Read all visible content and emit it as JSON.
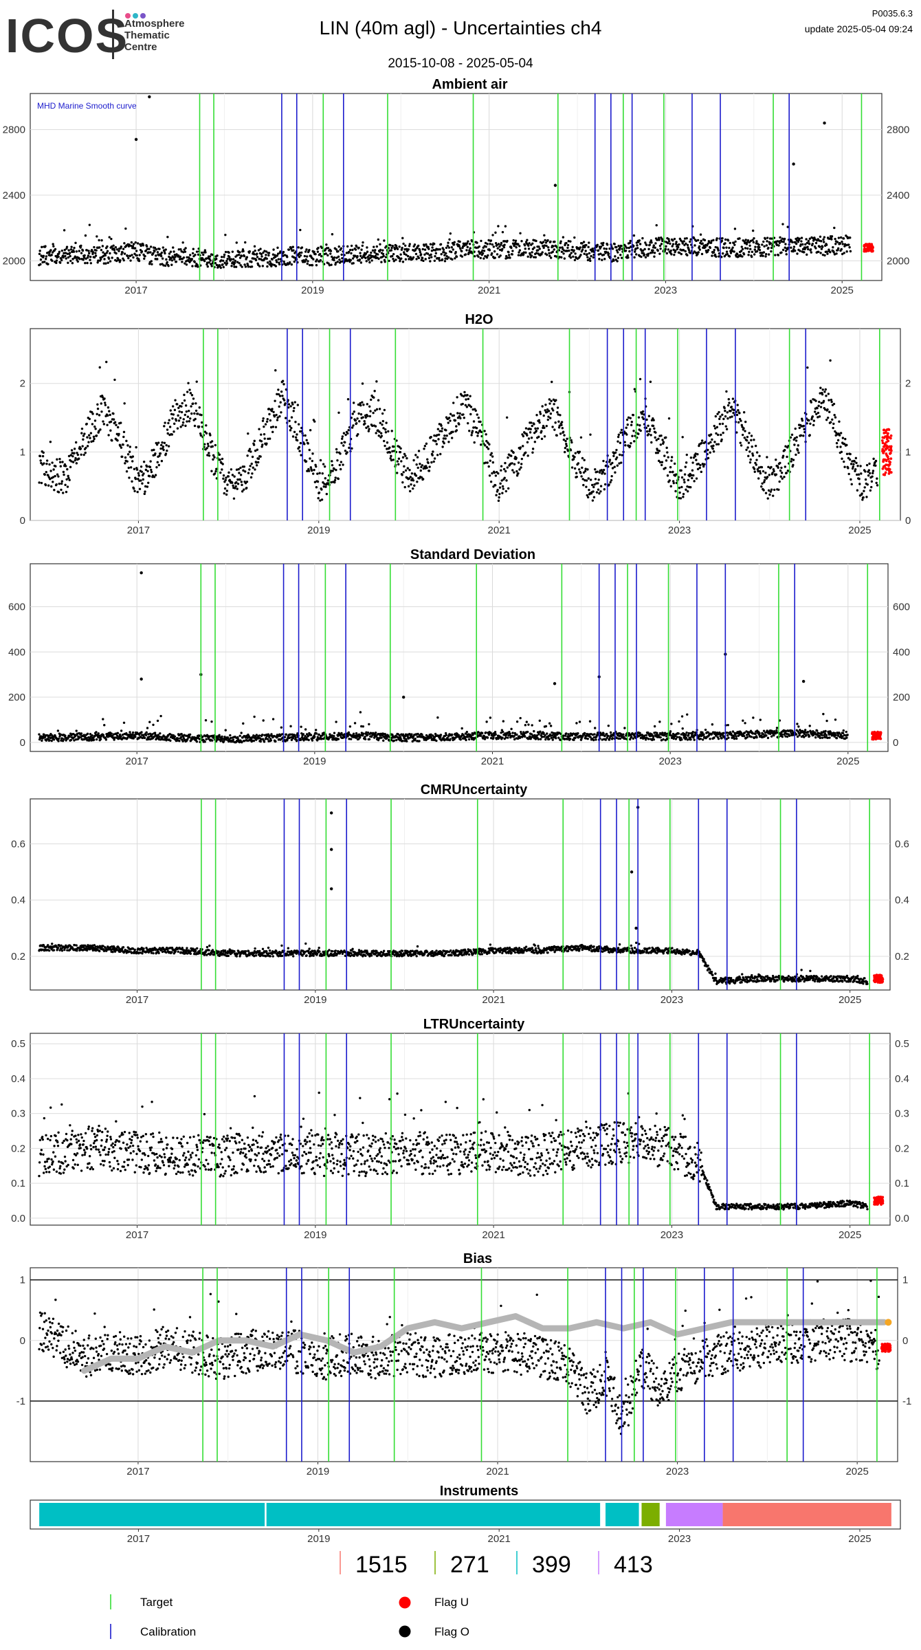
{
  "header": {
    "logo_text": "ICOS",
    "logo_tagline": [
      "Atmosphere",
      "Thematic",
      "Centre"
    ],
    "title": "LIN  (40m agl) - Uncertainties ch4",
    "date_range": "2015-10-08 - 2025-05-04",
    "version": "P0035.6.3",
    "update": "update  2025-05-04 09:24"
  },
  "colors": {
    "target": "#33dd33",
    "calibration": "#1a1acc",
    "flag_o": "#000000",
    "flag_u": "#ff0000",
    "smooth": "#b5b5b5",
    "logo_dots": [
      "#e84d8a",
      "#2fb6c8",
      "#7a55c8"
    ]
  },
  "events": {
    "target_years": [
      2017.72,
      2017.88,
      2019.12,
      2019.85,
      2020.82,
      2021.78,
      2022.52,
      2022.98,
      2024.22,
      2025.22
    ],
    "calibration_years": [
      2018.65,
      2018.82,
      2019.35,
      2022.2,
      2022.38,
      2022.62,
      2023.3,
      2023.62,
      2024.4
    ]
  },
  "chart_data": [
    {
      "type": "scatter",
      "title": "Ambient air",
      "annotation": "MHD Marine Smooth curve",
      "xlim": [
        2015.8,
        2025.45
      ],
      "xticks": [
        "2017",
        "2019",
        "2021",
        "2023",
        "2025"
      ],
      "ylim": [
        1880,
        3020
      ],
      "yticks": [
        2000,
        2400,
        2800
      ],
      "series": [
        {
          "flag": "O",
          "x": [
            2015.9,
            2016.3,
            2016.7,
            2017.0,
            2017.2,
            2017.6,
            2018.0,
            2018.4,
            2018.8,
            2019.2,
            2019.6,
            2020.0,
            2020.4,
            2020.8,
            2021.2,
            2021.6,
            2022.0,
            2022.4,
            2022.8,
            2023.2,
            2023.6,
            2024.0,
            2024.4,
            2024.8,
            2025.1
          ],
          "y": [
            2030,
            2040,
            2040,
            2060,
            2030,
            2020,
            2010,
            2020,
            2030,
            2030,
            2040,
            2050,
            2050,
            2070,
            2070,
            2080,
            2060,
            2050,
            2080,
            2090,
            2080,
            2080,
            2090,
            2090,
            2100
          ]
        },
        {
          "flag": "O-peaks",
          "x": [
            2017.0,
            2017.15,
            2024.45,
            2024.8,
            2021.75
          ],
          "y": [
            2740,
            3000,
            2590,
            2840,
            2460
          ]
        },
        {
          "flag": "U",
          "x": [
            2025.3
          ],
          "y": [
            2080
          ]
        }
      ]
    },
    {
      "type": "scatter",
      "title": "H2O",
      "xlim": [
        2015.8,
        2025.45
      ],
      "xticks": [
        "2017",
        "2019",
        "2021",
        "2023",
        "2025"
      ],
      "ylim": [
        0,
        2.8
      ],
      "yticks": [
        0,
        1,
        2
      ],
      "series": [
        {
          "flag": "O",
          "x": [
            2015.9,
            2016.2,
            2016.4,
            2016.6,
            2016.8,
            2017.0,
            2017.2,
            2017.4,
            2017.6,
            2017.8,
            2018.0,
            2018.2,
            2018.4,
            2018.6,
            2018.8,
            2019.0,
            2019.2,
            2019.4,
            2019.6,
            2019.8,
            2020.0,
            2020.2,
            2020.4,
            2020.6,
            2020.8,
            2021.0,
            2021.2,
            2021.4,
            2021.6,
            2021.8,
            2022.0,
            2022.2,
            2022.4,
            2022.6,
            2022.8,
            2023.0,
            2023.2,
            2023.4,
            2023.6,
            2023.8,
            2024.0,
            2024.2,
            2024.4,
            2024.6,
            2024.8,
            2025.0,
            2025.2
          ],
          "y": [
            0.8,
            0.6,
            1.2,
            1.6,
            1.2,
            0.5,
            0.9,
            1.5,
            1.7,
            1.0,
            0.5,
            0.7,
            1.3,
            1.8,
            1.2,
            0.5,
            0.8,
            1.4,
            1.6,
            1.1,
            0.6,
            0.9,
            1.3,
            1.7,
            1.2,
            0.5,
            0.9,
            1.3,
            1.6,
            1.0,
            0.5,
            0.7,
            1.2,
            1.6,
            1.0,
            0.5,
            0.8,
            1.3,
            1.6,
            1.0,
            0.5,
            0.9,
            1.4,
            1.8,
            1.1,
            0.5,
            0.7
          ]
        },
        {
          "flag": "U",
          "x": [
            2025.3
          ],
          "y": [
            1.0
          ]
        }
      ]
    },
    {
      "type": "scatter",
      "title": "Standard Deviation",
      "xlim": [
        2015.8,
        2025.45
      ],
      "xticks": [
        "2017",
        "2019",
        "2021",
        "2023",
        "2025"
      ],
      "ylim": [
        -40,
        790
      ],
      "yticks": [
        0,
        200,
        400,
        600
      ],
      "series": [
        {
          "flag": "O",
          "x": [
            2015.9,
            2016.5,
            2017.0,
            2017.5,
            2018.0,
            2018.5,
            2019.0,
            2019.5,
            2020.0,
            2020.5,
            2021.0,
            2021.5,
            2022.0,
            2022.5,
            2023.0,
            2023.5,
            2024.0,
            2024.5,
            2025.0
          ],
          "y": [
            20,
            25,
            30,
            20,
            15,
            20,
            25,
            30,
            20,
            25,
            30,
            30,
            25,
            30,
            25,
            30,
            35,
            40,
            30
          ]
        },
        {
          "flag": "O-peaks",
          "x": [
            2017.05,
            2017.05,
            2017.72,
            2021.7,
            2022.2,
            2023.62,
            2024.5,
            2020.0
          ],
          "y": [
            750,
            280,
            300,
            260,
            290,
            390,
            270,
            200
          ]
        },
        {
          "flag": "U",
          "x": [
            2025.32
          ],
          "y": [
            30
          ]
        }
      ]
    },
    {
      "type": "scatter",
      "title": "CMRUncertainty",
      "xlim": [
        2015.8,
        2025.45
      ],
      "xticks": [
        "2017",
        "2019",
        "2021",
        "2023",
        "2025"
      ],
      "ylim": [
        0.08,
        0.76
      ],
      "yticks": [
        0.2,
        0.4,
        0.6
      ],
      "series": [
        {
          "flag": "O",
          "x": [
            2015.9,
            2016.5,
            2017.0,
            2017.5,
            2018.0,
            2018.5,
            2019.0,
            2019.5,
            2020.0,
            2020.5,
            2021.0,
            2021.5,
            2022.0,
            2022.5,
            2023.0,
            2023.3,
            2023.5,
            2024.0,
            2024.5,
            2025.0,
            2025.2
          ],
          "y": [
            0.23,
            0.23,
            0.22,
            0.22,
            0.21,
            0.21,
            0.21,
            0.21,
            0.21,
            0.21,
            0.22,
            0.22,
            0.23,
            0.22,
            0.22,
            0.21,
            0.11,
            0.12,
            0.12,
            0.12,
            0.11
          ]
        },
        {
          "flag": "O-peaks",
          "x": [
            2019.18,
            2019.18,
            2019.18,
            2022.55,
            2022.6,
            2022.62
          ],
          "y": [
            0.71,
            0.58,
            0.44,
            0.5,
            0.3,
            0.73
          ]
        },
        {
          "flag": "U",
          "x": [
            2025.32
          ],
          "y": [
            0.12
          ]
        }
      ]
    },
    {
      "type": "scatter",
      "title": "LTRUncertainty",
      "xlim": [
        2015.8,
        2025.45
      ],
      "xticks": [
        "2017",
        "2019",
        "2021",
        "2023",
        "2025"
      ],
      "ylim": [
        -0.02,
        0.53
      ],
      "yticks": [
        0.0,
        0.1,
        0.2,
        0.3,
        0.4,
        0.5
      ],
      "series": [
        {
          "flag": "O",
          "x": [
            2015.9,
            2016.5,
            2017.0,
            2017.5,
            2018.0,
            2018.5,
            2019.0,
            2019.5,
            2020.0,
            2020.5,
            2021.0,
            2021.5,
            2022.0,
            2022.5,
            2023.0,
            2023.3,
            2023.5,
            2024.0,
            2024.5,
            2025.0,
            2025.2
          ],
          "y": [
            0.18,
            0.2,
            0.19,
            0.18,
            0.18,
            0.19,
            0.18,
            0.18,
            0.19,
            0.18,
            0.19,
            0.18,
            0.2,
            0.22,
            0.2,
            0.16,
            0.03,
            0.03,
            0.03,
            0.04,
            0.03
          ]
        },
        {
          "flag": "U",
          "x": [
            2025.32
          ],
          "y": [
            0.05
          ]
        }
      ]
    },
    {
      "type": "line",
      "title": "Bias",
      "xlim": [
        2015.8,
        2025.45
      ],
      "xticks": [
        "2017",
        "2019",
        "2021",
        "2023",
        "2025"
      ],
      "ylim": [
        -2.0,
        1.2
      ],
      "yticks": [
        -1,
        0,
        1
      ],
      "hlines": [
        -1,
        1
      ],
      "series": [
        {
          "flag": "O",
          "x": [
            2015.9,
            2016.2,
            2016.5,
            2016.8,
            2017.0,
            2017.3,
            2017.6,
            2017.9,
            2018.2,
            2018.5,
            2018.8,
            2019.1,
            2019.4,
            2019.7,
            2020.0,
            2020.3,
            2020.6,
            2020.9,
            2021.2,
            2021.5,
            2021.8,
            2022.0,
            2022.2,
            2022.4,
            2022.6,
            2022.8,
            2023.0,
            2023.3,
            2023.6,
            2023.9,
            2024.2,
            2024.5,
            2024.8,
            2025.1,
            2025.25
          ],
          "y": [
            0.2,
            -0.1,
            -0.3,
            -0.2,
            -0.3,
            -0.1,
            -0.2,
            -0.3,
            -0.2,
            -0.1,
            -0.2,
            -0.3,
            -0.2,
            -0.3,
            -0.2,
            -0.3,
            -0.2,
            -0.2,
            -0.2,
            -0.3,
            -0.4,
            -0.9,
            -0.6,
            -1.3,
            -0.4,
            -0.8,
            -0.5,
            -0.3,
            -0.2,
            -0.1,
            -0.05,
            0.0,
            0.0,
            0.0,
            -0.15
          ]
        },
        {
          "flag": "smooth",
          "x": [
            2016.4,
            2016.7,
            2017.0,
            2017.3,
            2017.6,
            2017.9,
            2018.2,
            2018.5,
            2018.8,
            2019.1,
            2019.4,
            2019.7,
            2020.0,
            2020.3,
            2020.6,
            2020.9,
            2021.2,
            2021.5,
            2021.8,
            2022.1,
            2022.4,
            2022.7,
            2023.0,
            2023.3,
            2023.6,
            2023.9,
            2024.2,
            2024.5,
            2024.8,
            2025.1,
            2025.3
          ],
          "y": [
            -0.5,
            -0.3,
            -0.3,
            -0.1,
            -0.2,
            0.0,
            0.0,
            -0.1,
            0.1,
            0.0,
            -0.2,
            -0.1,
            0.2,
            0.3,
            0.2,
            0.3,
            0.4,
            0.2,
            0.2,
            0.3,
            0.2,
            0.3,
            0.1,
            0.2,
            0.3,
            0.3,
            0.3,
            0.3,
            0.3,
            0.3,
            0.3
          ]
        },
        {
          "flag": "U",
          "x": [
            2025.32
          ],
          "y": [
            -0.12
          ]
        }
      ]
    },
    {
      "type": "bar",
      "title": "Instruments",
      "xlim": [
        2015.8,
        2025.45
      ],
      "xticks": [
        "2017",
        "2019",
        "2021",
        "2023",
        "2025"
      ],
      "segments": [
        {
          "id": "399",
          "start": 2015.9,
          "end": 2018.4,
          "color": "#00bfc4"
        },
        {
          "id": "399",
          "start": 2018.42,
          "end": 2022.12,
          "color": "#00bfc4"
        },
        {
          "id": "399",
          "start": 2022.18,
          "end": 2022.55,
          "color": "#00bfc4"
        },
        {
          "id": "271",
          "start": 2022.58,
          "end": 2022.78,
          "color": "#7cae00"
        },
        {
          "id": "413",
          "start": 2022.85,
          "end": 2023.48,
          "color": "#c77cff"
        },
        {
          "id": "1515",
          "start": 2023.48,
          "end": 2025.35,
          "color": "#f8766d"
        }
      ]
    }
  ],
  "instrument_legend": [
    {
      "label": "1515",
      "color": "#f8766d"
    },
    {
      "label": "271",
      "color": "#7cae00"
    },
    {
      "label": "399",
      "color": "#00bfc4"
    },
    {
      "label": "413",
      "color": "#c77cff"
    }
  ],
  "legend": {
    "target": "Target",
    "calibration": "Calibration",
    "flag_u": "Flag U",
    "flag_o": "Flag O"
  }
}
